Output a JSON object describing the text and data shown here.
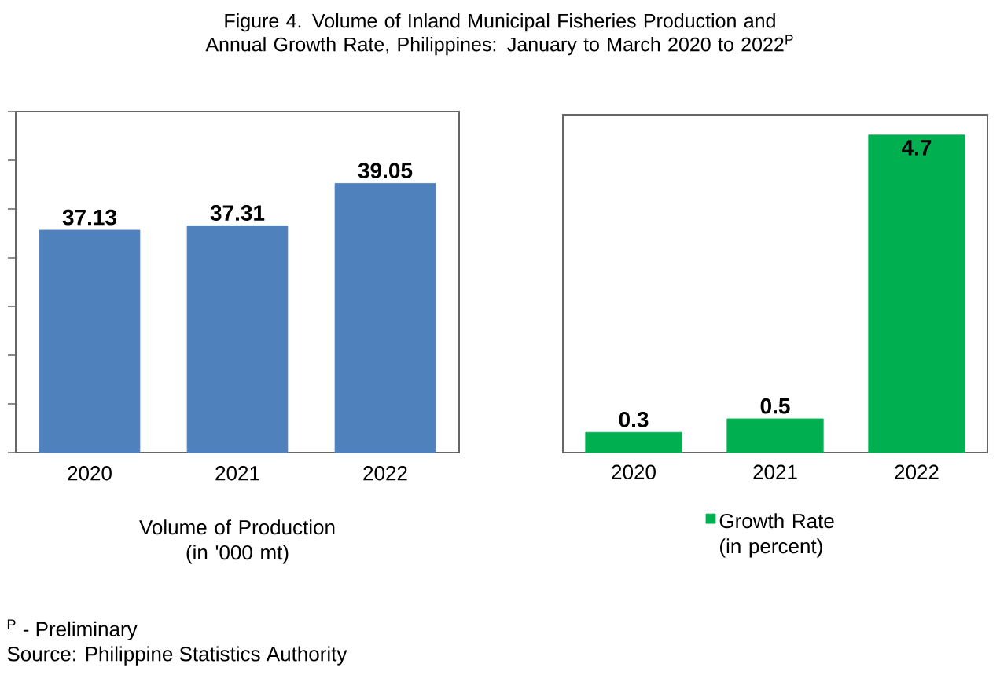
{
  "chart_data": [
    {
      "type": "bar",
      "title": "Figure 4. Volume of Inland Municipal Fisheries Production and Annual Growth Rate, Philippines: January to March 2020 to 2022$^{P}$",
      "xlabel": "Volume of Production (in '000 mt)",
      "categories": [
        "2020",
        "2021",
        "2022"
      ],
      "values": [
        37.13,
        37.31,
        39.05
      ],
      "color": "#4f81bd",
      "ylim": [
        28,
        42
      ],
      "yticks": [
        {
          "value": 28,
          "label": null
        },
        {
          "value": 30,
          "label": null
        },
        {
          "value": 32,
          "label": null
        },
        {
          "value": 34,
          "label": null
        },
        {
          "value": 36,
          "label": null
        },
        {
          "value": 38,
          "label": null
        },
        {
          "value": 40,
          "label": null
        },
        {
          "value": 42,
          "label": null
        }
      ],
      "tick_labels": "x",
      "data_labels": true,
      "annotations": [
        "$^{P}$ - Preliminary",
        "Source: Philippine Statistics Authority"
      ]
    },
    {
      "type": "bar",
      "categories": [
        "2020",
        "2021",
        "2022"
      ],
      "series": [
        {
          "name": "Growth Rate (in percent)",
          "color": "#00b050",
          "values": [
            0.3,
            0.5,
            4.7
          ]
        }
      ],
      "ylim": [
        0,
        5
      ],
      "tick_labels": "x",
      "data_labels": true,
      "legend": "bottom"
    }
  ]
}
